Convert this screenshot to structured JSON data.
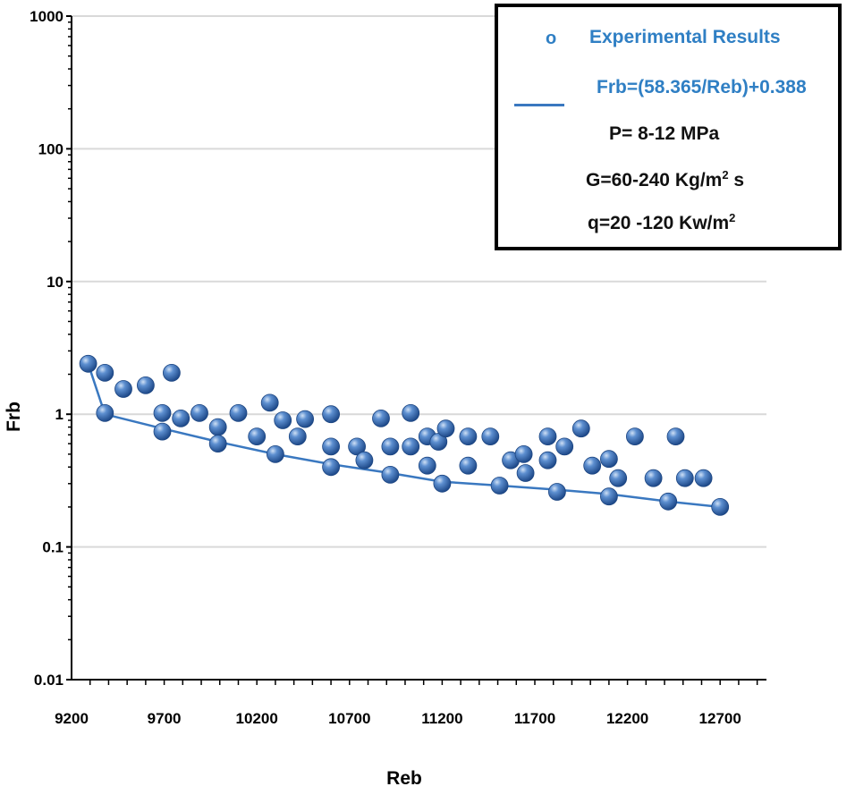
{
  "chart_data": {
    "type": "scatter",
    "title": "",
    "xlabel": "Reb",
    "ylabel": "Frb",
    "xlim": [
      9200,
      12950
    ],
    "ylim": [
      0.01,
      1000
    ],
    "yscale": "log",
    "x_ticks": [
      9200,
      9700,
      10200,
      10700,
      11200,
      11700,
      12200,
      12700
    ],
    "y_ticks": [
      {
        "value": 0.01,
        "label": "0.01"
      },
      {
        "value": 0.1,
        "label": "0.1"
      },
      {
        "value": 1,
        "label": "1"
      },
      {
        "value": 10,
        "label": "10"
      },
      {
        "value": 100,
        "label": "100"
      },
      {
        "value": 1000,
        "label": "1000"
      }
    ],
    "grid": true,
    "legend_position": "top-right",
    "series": [
      {
        "name": "Experimental Results",
        "kind": "scatter",
        "color": "#3b6fb8",
        "points": [
          [
            9290,
            2.4
          ],
          [
            9380,
            2.05
          ],
          [
            9380,
            1.02
          ],
          [
            9480,
            1.55
          ],
          [
            9600,
            1.65
          ],
          [
            9690,
            1.02
          ],
          [
            9690,
            0.74
          ],
          [
            9740,
            2.05
          ],
          [
            9790,
            0.93
          ],
          [
            9890,
            1.02
          ],
          [
            9990,
            0.8
          ],
          [
            9990,
            0.6
          ],
          [
            10100,
            1.02
          ],
          [
            10200,
            0.68
          ],
          [
            10270,
            1.22
          ],
          [
            10300,
            0.5
          ],
          [
            10340,
            0.9
          ],
          [
            10420,
            0.68
          ],
          [
            10460,
            0.92
          ],
          [
            10600,
            1.0
          ],
          [
            10600,
            0.57
          ],
          [
            10600,
            0.4
          ],
          [
            10740,
            0.57
          ],
          [
            10780,
            0.45
          ],
          [
            10870,
            0.93
          ],
          [
            10920,
            0.57
          ],
          [
            10920,
            0.35
          ],
          [
            11030,
            1.02
          ],
          [
            11030,
            0.57
          ],
          [
            11120,
            0.68
          ],
          [
            11120,
            0.41
          ],
          [
            11180,
            0.62
          ],
          [
            11200,
            0.3
          ],
          [
            11220,
            0.78
          ],
          [
            11340,
            0.68
          ],
          [
            11340,
            0.41
          ],
          [
            11460,
            0.68
          ],
          [
            11510,
            0.29
          ],
          [
            11570,
            0.45
          ],
          [
            11640,
            0.5
          ],
          [
            11650,
            0.36
          ],
          [
            11770,
            0.68
          ],
          [
            11770,
            0.45
          ],
          [
            11820,
            0.26
          ],
          [
            11860,
            0.57
          ],
          [
            11950,
            0.78
          ],
          [
            12010,
            0.41
          ],
          [
            12100,
            0.46
          ],
          [
            12100,
            0.24
          ],
          [
            12150,
            0.33
          ],
          [
            12240,
            0.68
          ],
          [
            12340,
            0.33
          ],
          [
            12420,
            0.22
          ],
          [
            12460,
            0.68
          ],
          [
            12510,
            0.33
          ],
          [
            12610,
            0.33
          ],
          [
            12700,
            0.2
          ]
        ]
      },
      {
        "name": "Frb=(58.365/Reb)+0.388",
        "kind": "line",
        "color": "#3a78c0",
        "points": [
          [
            9290,
            2.4
          ],
          [
            9380,
            1.0
          ],
          [
            9690,
            0.78
          ],
          [
            9990,
            0.62
          ],
          [
            10300,
            0.5
          ],
          [
            10600,
            0.42
          ],
          [
            10920,
            0.36
          ],
          [
            11200,
            0.31
          ],
          [
            11510,
            0.29
          ],
          [
            11820,
            0.27
          ],
          [
            12100,
            0.25
          ],
          [
            12420,
            0.22
          ],
          [
            12700,
            0.2
          ]
        ]
      }
    ]
  },
  "legend": {
    "marker_symbol": "o",
    "experimental_label": "Experimental Results",
    "fit_label": "Frb=(58.365/Reb)+0.388",
    "pressure_label": "P= 8-12 MPa",
    "mass_flux_label": "G=60-240 Kg/m",
    "mass_flux_sup": "2",
    "mass_flux_suffix": " s",
    "heat_flux_label": "q=20 -120 Kw/m",
    "heat_flux_sup": "2"
  }
}
